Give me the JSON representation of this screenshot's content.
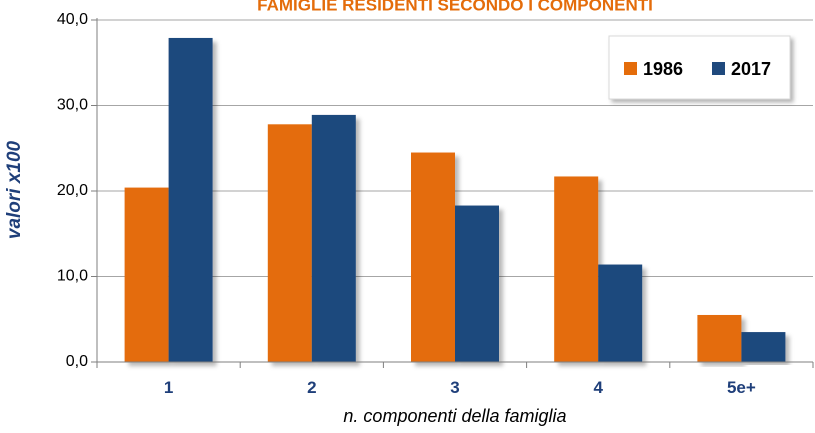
{
  "chart_data": {
    "type": "bar",
    "title": "FAMIGLIE RESIDENTI SECONDO I COMPONENTI",
    "xlabel": "n. componenti della famiglia",
    "ylabel": "valori x100",
    "categories": [
      "1",
      "2",
      "3",
      "4",
      "5e+"
    ],
    "series": [
      {
        "name": "1986",
        "color": "#e46c0a",
        "values": [
          20.4,
          27.8,
          24.5,
          21.7,
          5.5
        ]
      },
      {
        "name": "2017",
        "color": "#1f497d",
        "values": [
          37.9,
          28.9,
          18.3,
          11.4,
          3.5
        ]
      }
    ],
    "ylim": [
      0,
      40
    ],
    "yticks": [
      "0,0",
      "10,0",
      "20,0",
      "30,0",
      "40,0"
    ],
    "grid": true,
    "legend_position": "top-right"
  }
}
